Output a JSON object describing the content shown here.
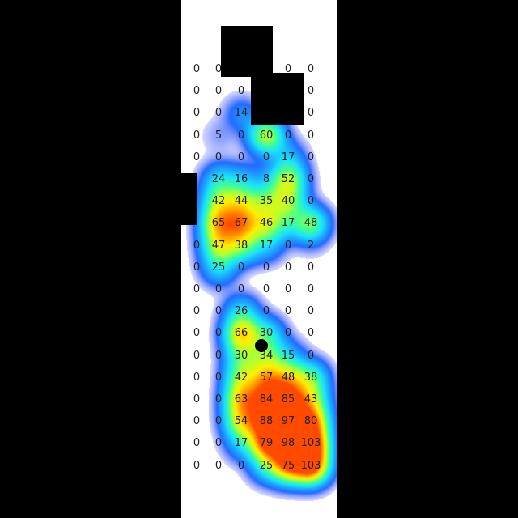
{
  "chart_data": {
    "type": "heatmap",
    "title": "",
    "xlabel": "",
    "ylabel": "",
    "columns": 6,
    "rows": 19,
    "cell_values": [
      [
        "0",
        "0",
        "",
        "",
        "0",
        "0"
      ],
      [
        "0",
        "0",
        "0",
        "",
        "",
        "0"
      ],
      [
        "0",
        "0",
        "14",
        "",
        "",
        "0"
      ],
      [
        "0",
        "5",
        "0",
        "60",
        "0",
        "0"
      ],
      [
        "0",
        "0",
        "0",
        "0",
        "17",
        "0"
      ],
      [
        "",
        "24",
        "16",
        "8",
        "52",
        "0"
      ],
      [
        "",
        "42",
        "44",
        "35",
        "40",
        "0"
      ],
      [
        "",
        "65",
        "67",
        "46",
        "17",
        "48"
      ],
      [
        "0",
        "47",
        "38",
        "17",
        "0",
        "2"
      ],
      [
        "0",
        "25",
        "0",
        "0",
        "0",
        "0"
      ],
      [
        "0",
        "0",
        "0",
        "0",
        "0",
        "0"
      ],
      [
        "0",
        "0",
        "26",
        "0",
        "0",
        "0"
      ],
      [
        "0",
        "0",
        "66",
        "30",
        "0",
        "0"
      ],
      [
        "0",
        "0",
        "30",
        "34",
        "15",
        "0"
      ],
      [
        "0",
        "0",
        "42",
        "57",
        "48",
        "38"
      ],
      [
        "0",
        "0",
        "63",
        "84",
        "85",
        "43"
      ],
      [
        "0",
        "0",
        "54",
        "88",
        "97",
        "80"
      ],
      [
        "0",
        "0",
        "17",
        "79",
        "98",
        "103"
      ],
      [
        "0",
        "0",
        "0",
        "25",
        "75",
        "103"
      ]
    ],
    "intensity_max": 103,
    "colormap": [
      "#2a2cff",
      "#1f8fff",
      "#19e0ff",
      "#3dff9a",
      "#b8ff2c",
      "#ffee00",
      "#ff9a00",
      "#ff4a00"
    ],
    "marker": {
      "row": 13,
      "col": 2.8
    }
  }
}
